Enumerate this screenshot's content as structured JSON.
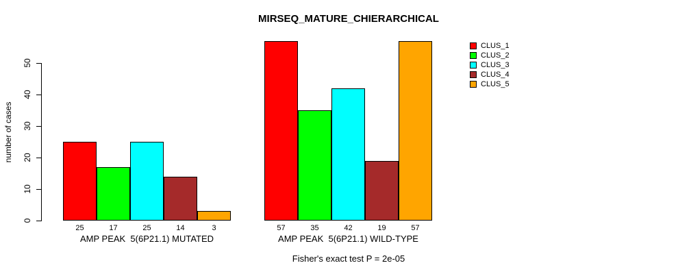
{
  "title": "MIRSEQ_MATURE_CHIERARCHICAL",
  "y_axis": {
    "label": "number of cases",
    "ticks": [
      0,
      10,
      20,
      30,
      40,
      50
    ]
  },
  "legend": {
    "items": [
      {
        "label": "CLUS_1",
        "color": "#FF0000"
      },
      {
        "label": "CLUS_2",
        "color": "#00FF00"
      },
      {
        "label": "CLUS_3",
        "color": "#00FFFF"
      },
      {
        "label": "CLUS_4",
        "color": "#A52A2A"
      },
      {
        "label": "CLUS_5",
        "color": "#FFA500"
      }
    ]
  },
  "groups": [
    {
      "label": "AMP PEAK  5(6P21.1) MUTATED",
      "values": [
        25,
        17,
        25,
        14,
        3
      ]
    },
    {
      "label": "AMP PEAK  5(6P21.1) WILD-TYPE",
      "values": [
        57,
        35,
        42,
        19,
        57
      ]
    }
  ],
  "caption": "Fisher's exact test P = 2e-05",
  "chart_data": {
    "type": "bar",
    "title": "MIRSEQ_MATURE_CHIERARCHICAL",
    "categories": [
      "AMP PEAK  5(6P21.1) MUTATED",
      "AMP PEAK  5(6P21.1) WILD-TYPE"
    ],
    "series": [
      {
        "name": "CLUS_1",
        "color": "#FF0000",
        "values": [
          25,
          57
        ]
      },
      {
        "name": "CLUS_2",
        "color": "#00FF00",
        "values": [
          17,
          35
        ]
      },
      {
        "name": "CLUS_3",
        "color": "#00FFFF",
        "values": [
          25,
          42
        ]
      },
      {
        "name": "CLUS_4",
        "color": "#A52A2A",
        "values": [
          14,
          19
        ]
      },
      {
        "name": "CLUS_5",
        "color": "#FFA500",
        "values": [
          3,
          57
        ]
      }
    ],
    "xlabel": "",
    "ylabel": "number of cases",
    "ylim": [
      0,
      50
    ],
    "yticks": [
      0,
      10,
      20,
      30,
      40,
      50
    ],
    "bar_value_labels": true,
    "grid": false,
    "legend_position": "right",
    "annotation": "Fisher's exact test P = 2e-05"
  }
}
